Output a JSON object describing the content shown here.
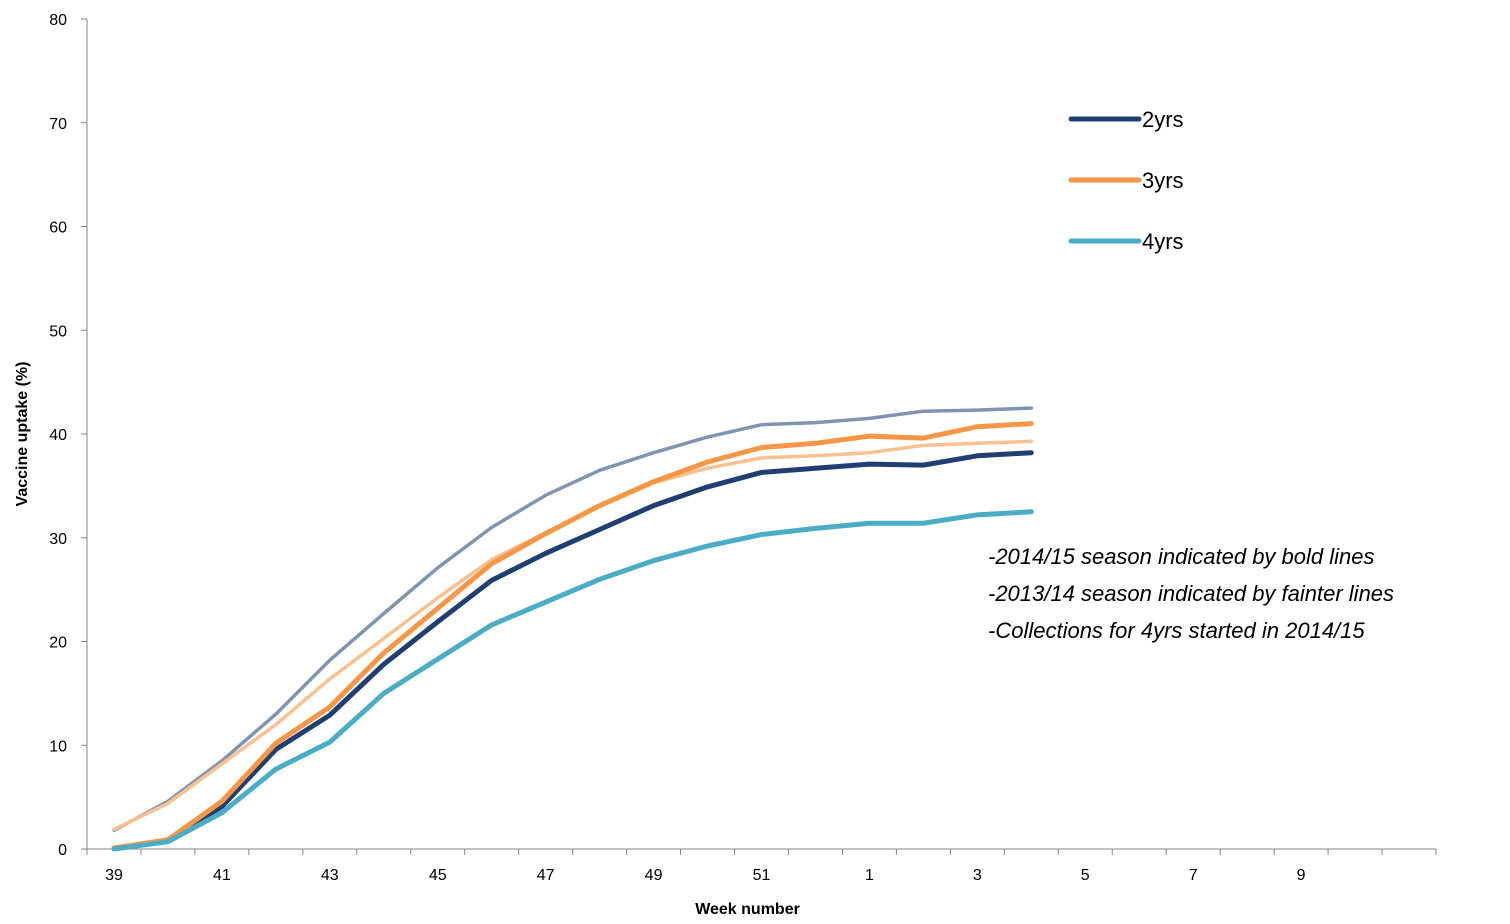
{
  "chart_data": {
    "type": "line",
    "title": "",
    "xlabel": "Week number",
    "ylabel": "Vaccine uptake (%)",
    "ylim": [
      0,
      80
    ],
    "y_ticks": [
      0,
      10,
      20,
      30,
      40,
      50,
      60,
      70,
      80
    ],
    "x_categories": [
      "39",
      "40",
      "41",
      "42",
      "43",
      "44",
      "45",
      "46",
      "47",
      "48",
      "49",
      "50",
      "51",
      "52",
      "1",
      "2",
      "3",
      "4",
      "5",
      "6",
      "7",
      "8",
      "9",
      "10",
      "11"
    ],
    "x_tick_labels": [
      "39",
      "",
      "41",
      "",
      "43",
      "",
      "45",
      "",
      "47",
      "",
      "49",
      "",
      "51",
      "",
      "1",
      "",
      "3",
      "",
      "5",
      "",
      "7",
      "",
      "9",
      "",
      ""
    ],
    "grid": false,
    "legend_position": "top-right",
    "series": [
      {
        "name": "",
        "season": "2013/14",
        "color": "#7F94B3",
        "weight": "faint",
        "values": [
          1.8,
          4.6,
          8.5,
          13.0,
          18.2,
          22.7,
          27.1,
          31.0,
          34.1,
          36.5,
          38.2,
          39.7,
          40.9,
          41.1,
          41.5,
          42.2,
          42.3,
          42.5
        ]
      },
      {
        "name": "",
        "season": "2013/14",
        "color": "#FAC090",
        "weight": "faint",
        "values": [
          1.9,
          4.4,
          8.2,
          12.0,
          16.4,
          20.3,
          24.2,
          27.9,
          30.5,
          33.0,
          35.3,
          36.7,
          37.7,
          37.9,
          38.2,
          38.9,
          39.1,
          39.3
        ]
      },
      {
        "name": "2yrs",
        "season": "2014/15",
        "color": "#1F3F73",
        "weight": "bold",
        "values": [
          0.1,
          0.8,
          4.1,
          9.6,
          12.9,
          17.8,
          21.9,
          25.9,
          28.5,
          30.8,
          33.1,
          34.9,
          36.3,
          36.7,
          37.1,
          37.0,
          37.9,
          38.2
        ]
      },
      {
        "name": "3yrs",
        "season": "2014/15",
        "color": "#F79646",
        "weight": "bold",
        "values": [
          0.1,
          0.9,
          4.6,
          10.2,
          13.7,
          18.9,
          23.2,
          27.5,
          30.4,
          33.1,
          35.4,
          37.3,
          38.7,
          39.1,
          39.8,
          39.6,
          40.7,
          41.0
        ]
      },
      {
        "name": "4yrs",
        "season": "2014/15",
        "color": "#4BACC6",
        "weight": "bold",
        "values": [
          0.0,
          0.7,
          3.5,
          7.7,
          10.3,
          15.0,
          18.3,
          21.6,
          23.8,
          26.0,
          27.8,
          29.2,
          30.3,
          30.9,
          31.4,
          31.4,
          32.2,
          32.5
        ]
      }
    ],
    "legend": [
      {
        "label": "2yrs",
        "color": "#1F3F73"
      },
      {
        "label": "3yrs",
        "color": "#F79646"
      },
      {
        "label": "4yrs",
        "color": "#4BACC6"
      }
    ],
    "annotations": [
      "-2014/15 season indicated by bold lines",
      "-2013/14 season indicated by fainter lines",
      "-Collections for 4yrs started in 2014/15"
    ]
  }
}
